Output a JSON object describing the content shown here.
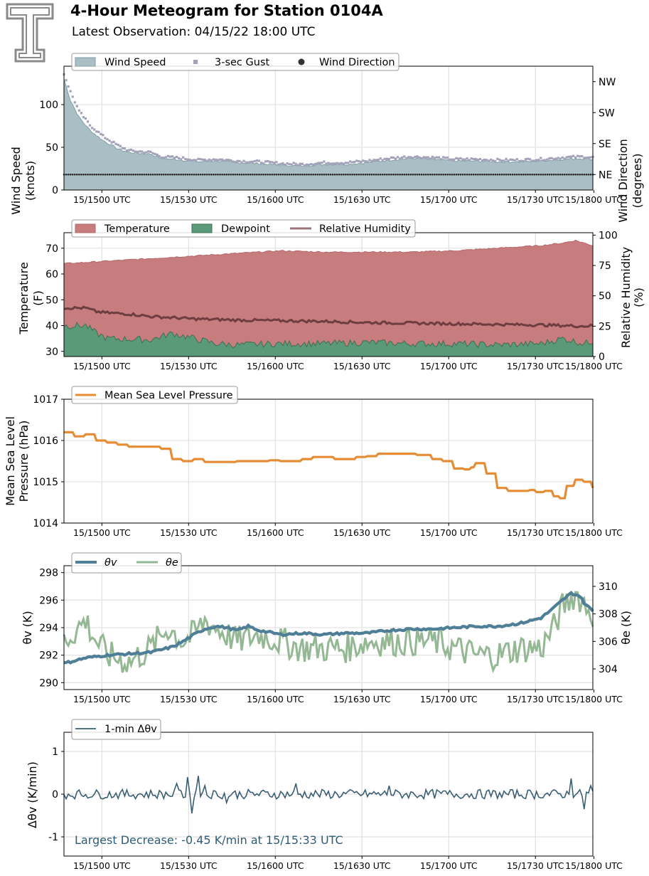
{
  "header": {
    "title": "4-Hour Meteogram for Station 0104A",
    "subtitle": "Latest Observation: 04/15/22 18:00 UTC",
    "logo_icon": "texas-tech-double-t-logo"
  },
  "x_ticks": [
    "15/1500 UTC",
    "15/1530 UTC",
    "15/1600 UTC",
    "15/1630 UTC",
    "15/1700 UTC",
    "15/1730 UTC",
    "15/1800 UTC"
  ],
  "chart_data": [
    {
      "type": "area",
      "id": "wind",
      "x_range": [
        "15/1445 UTC",
        "15/1800 UTC"
      ],
      "ylabel": [
        "Wind Speed",
        "(knots)"
      ],
      "ylim": [
        0,
        145
      ],
      "yticks": [
        0,
        50,
        100
      ],
      "y2label": [
        "Wind Direction",
        "(degrees)"
      ],
      "y2ticks": [
        "NE",
        "SE",
        "SW",
        "NW"
      ],
      "y2ticks_deg": [
        45,
        135,
        225,
        315
      ],
      "y2lim": [
        0,
        360
      ],
      "grid": true,
      "legend": [
        "Wind Speed",
        "3-sec Gust",
        "Wind Direction"
      ],
      "legend_position": "top-left",
      "colors": {
        "speed": "#a9bfc5",
        "speed_line": "#7f9ea4",
        "gust": "#a2a2ba",
        "direction": "#222222"
      },
      "series": [
        {
          "name": "Wind Speed",
          "keyframes": [
            [
              0,
              130
            ],
            [
              3,
              105
            ],
            [
              7,
              85
            ],
            [
              12,
              70
            ],
            [
              18,
              58
            ],
            [
              25,
              48
            ],
            [
              30,
              44
            ],
            [
              40,
              42
            ],
            [
              45,
              37
            ],
            [
              55,
              35
            ],
            [
              62,
              33
            ],
            [
              70,
              34
            ],
            [
              80,
              32
            ],
            [
              90,
              31
            ],
            [
              100,
              29
            ],
            [
              110,
              28
            ],
            [
              120,
              30
            ],
            [
              130,
              30
            ],
            [
              140,
              32
            ],
            [
              150,
              35
            ],
            [
              160,
              37
            ],
            [
              170,
              36
            ],
            [
              180,
              34
            ],
            [
              190,
              34
            ],
            [
              200,
              33
            ],
            [
              210,
              33
            ],
            [
              220,
              34
            ],
            [
              230,
              36
            ],
            [
              240,
              37
            ],
            [
              244,
              36
            ]
          ]
        },
        {
          "name": "3-sec Gust",
          "keyframes": [
            [
              0,
              136
            ],
            [
              3,
              115
            ],
            [
              7,
              92
            ],
            [
              12,
              76
            ],
            [
              18,
              63
            ],
            [
              25,
              52
            ],
            [
              30,
              46
            ],
            [
              40,
              44
            ],
            [
              45,
              39
            ],
            [
              55,
              37
            ],
            [
              62,
              35
            ],
            [
              70,
              36
            ],
            [
              80,
              34
            ],
            [
              90,
              33
            ],
            [
              100,
              31
            ],
            [
              110,
              30
            ],
            [
              120,
              32
            ],
            [
              130,
              32
            ],
            [
              140,
              34
            ],
            [
              150,
              37
            ],
            [
              160,
              39
            ],
            [
              170,
              38
            ],
            [
              180,
              36
            ],
            [
              190,
              36
            ],
            [
              200,
              35
            ],
            [
              210,
              35
            ],
            [
              220,
              36
            ],
            [
              230,
              38
            ],
            [
              240,
              39
            ],
            [
              244,
              38
            ]
          ]
        },
        {
          "name": "Wind Direction",
          "value_deg": 45
        }
      ]
    },
    {
      "type": "area",
      "id": "thermo",
      "ylabel": [
        "Temperature",
        "(F)"
      ],
      "ylim": [
        28,
        76
      ],
      "yticks": [
        30,
        40,
        50,
        60,
        70
      ],
      "y2label": [
        "Relative Humidity",
        "(%)"
      ],
      "y2lim": [
        0,
        102
      ],
      "y2ticks": [
        0,
        25,
        50,
        75,
        100
      ],
      "grid": true,
      "legend": [
        "Temperature",
        "Dewpoint",
        "Relative Humidity"
      ],
      "legend_position": "top-left",
      "colors": {
        "temperature": "#c77c7e",
        "temperature_line": "#b5676a",
        "dewpoint": "#5a9a78",
        "dewpoint_line": "#3d6e52",
        "rh": "#6e3d40"
      },
      "series": [
        {
          "name": "Temperature",
          "keyframes": [
            [
              0,
              64
            ],
            [
              20,
              65
            ],
            [
              40,
              66
            ],
            [
              60,
              67
            ],
            [
              80,
              68
            ],
            [
              100,
              69
            ],
            [
              120,
              68.5
            ],
            [
              140,
              68.5
            ],
            [
              160,
              68.5
            ],
            [
              180,
              69
            ],
            [
              200,
              70
            ],
            [
              220,
              71
            ],
            [
              230,
              72
            ],
            [
              236,
              73
            ],
            [
              244,
              71
            ]
          ]
        },
        {
          "name": "Dewpoint",
          "keyframes": [
            [
              0,
              40
            ],
            [
              10,
              40
            ],
            [
              15,
              37
            ],
            [
              20,
              35
            ],
            [
              40,
              34.5
            ],
            [
              50,
              37
            ],
            [
              60,
              35
            ],
            [
              70,
              33
            ],
            [
              80,
              32.5
            ],
            [
              100,
              33
            ],
            [
              120,
              33
            ],
            [
              140,
              33.5
            ],
            [
              160,
              33
            ],
            [
              180,
              33
            ],
            [
              200,
              32.5
            ],
            [
              220,
              33
            ],
            [
              230,
              35
            ],
            [
              240,
              33
            ],
            [
              244,
              34
            ]
          ]
        },
        {
          "name": "Relative Humidity",
          "keyframes": [
            [
              0,
              40
            ],
            [
              10,
              40
            ],
            [
              15,
              37
            ],
            [
              20,
              36
            ],
            [
              30,
              35
            ],
            [
              40,
              33
            ],
            [
              50,
              32
            ],
            [
              60,
              31
            ],
            [
              80,
              30
            ],
            [
              100,
              29.5
            ],
            [
              120,
              29
            ],
            [
              140,
              28
            ],
            [
              160,
              27.5
            ],
            [
              180,
              27
            ],
            [
              200,
              26.5
            ],
            [
              220,
              26
            ],
            [
              240,
              25
            ],
            [
              244,
              25.5
            ]
          ]
        }
      ]
    },
    {
      "type": "line",
      "id": "pressure",
      "ylabel": [
        "Mean Sea Level",
        "Pressure (hPa)"
      ],
      "ylim": [
        1014,
        1017
      ],
      "yticks": [
        1014,
        1015,
        1016,
        1017
      ],
      "grid": true,
      "legend": [
        "Mean Sea Level Pressure"
      ],
      "legend_position": "top-left",
      "colors": {
        "pressure": "#e68c34"
      },
      "series": [
        {
          "name": "Mean Sea Level Pressure",
          "keyframes": [
            [
              0,
              1016.2
            ],
            [
              5,
              1016.1
            ],
            [
              10,
              1016.15
            ],
            [
              15,
              1016.0
            ],
            [
              20,
              1015.95
            ],
            [
              25,
              1015.9
            ],
            [
              30,
              1015.85
            ],
            [
              40,
              1015.85
            ],
            [
              45,
              1015.8
            ],
            [
              50,
              1015.55
            ],
            [
              55,
              1015.5
            ],
            [
              60,
              1015.55
            ],
            [
              65,
              1015.48
            ],
            [
              75,
              1015.48
            ],
            [
              80,
              1015.5
            ],
            [
              90,
              1015.5
            ],
            [
              95,
              1015.52
            ],
            [
              100,
              1015.5
            ],
            [
              105,
              1015.5
            ],
            [
              110,
              1015.55
            ],
            [
              115,
              1015.6
            ],
            [
              125,
              1015.55
            ],
            [
              130,
              1015.55
            ],
            [
              135,
              1015.6
            ],
            [
              140,
              1015.62
            ],
            [
              145,
              1015.68
            ],
            [
              155,
              1015.68
            ],
            [
              160,
              1015.68
            ],
            [
              163,
              1015.65
            ],
            [
              170,
              1015.55
            ],
            [
              175,
              1015.5
            ],
            [
              180,
              1015.32
            ],
            [
              185,
              1015.3
            ],
            [
              188,
              1015.35
            ],
            [
              190,
              1015.45
            ],
            [
              195,
              1015.2
            ],
            [
              200,
              1014.85
            ],
            [
              205,
              1014.78
            ],
            [
              210,
              1014.78
            ],
            [
              215,
              1014.8
            ],
            [
              218,
              1014.75
            ],
            [
              222,
              1014.78
            ],
            [
              226,
              1014.65
            ],
            [
              229,
              1014.6
            ],
            [
              232,
              1014.9
            ],
            [
              236,
              1015.05
            ],
            [
              240,
              1015.0
            ],
            [
              244,
              1014.85
            ]
          ]
        }
      ]
    },
    {
      "type": "line",
      "id": "theta",
      "ylabel": "θv (K)",
      "ylim": [
        289.5,
        298.5
      ],
      "yticks": [
        290,
        292,
        294,
        296,
        298
      ],
      "y2label": "θe (K)",
      "y2lim": [
        302.5,
        311.5
      ],
      "y2ticks": [
        304,
        306,
        308,
        310
      ],
      "grid": true,
      "legend": [
        "θv",
        "θe"
      ],
      "legend_position": "top-left",
      "colors": {
        "theta_v": "#4f7e97",
        "theta_e": "#93b893"
      },
      "series": [
        {
          "name": "θv",
          "keyframes": [
            [
              0,
              291.4
            ],
            [
              10,
              291.8
            ],
            [
              20,
              292.0
            ],
            [
              30,
              292.1
            ],
            [
              40,
              292.2
            ],
            [
              50,
              292.6
            ],
            [
              55,
              293.0
            ],
            [
              60,
              293.5
            ],
            [
              65,
              293.9
            ],
            [
              70,
              294.1
            ],
            [
              75,
              294.0
            ],
            [
              80,
              293.8
            ],
            [
              85,
              294.1
            ],
            [
              90,
              293.8
            ],
            [
              100,
              293.5
            ],
            [
              110,
              293.6
            ],
            [
              120,
              293.5
            ],
            [
              130,
              293.6
            ],
            [
              140,
              293.6
            ],
            [
              150,
              293.8
            ],
            [
              160,
              293.9
            ],
            [
              170,
              293.9
            ],
            [
              180,
              294.0
            ],
            [
              190,
              294.1
            ],
            [
              200,
              294.1
            ],
            [
              210,
              294.3
            ],
            [
              215,
              294.5
            ],
            [
              220,
              294.7
            ],
            [
              225,
              295.3
            ],
            [
              230,
              296.0
            ],
            [
              234,
              296.5
            ],
            [
              238,
              296.3
            ],
            [
              240,
              295.8
            ],
            [
              244,
              295.2
            ]
          ]
        },
        {
          "name": "θe",
          "keyframes": [
            [
              0,
              306
            ],
            [
              10,
              307.5
            ],
            [
              15,
              306
            ],
            [
              20,
              305
            ],
            [
              30,
              304.5
            ],
            [
              40,
              305.5
            ],
            [
              48,
              307
            ],
            [
              55,
              306
            ],
            [
              60,
              306.5
            ],
            [
              65,
              307.5
            ],
            [
              70,
              307
            ],
            [
              75,
              306.5
            ],
            [
              80,
              306
            ],
            [
              90,
              306.5
            ],
            [
              100,
              306
            ],
            [
              110,
              305.5
            ],
            [
              120,
              305.5
            ],
            [
              130,
              305.5
            ],
            [
              140,
              306
            ],
            [
              150,
              306
            ],
            [
              160,
              306
            ],
            [
              170,
              306
            ],
            [
              180,
              305.5
            ],
            [
              190,
              305
            ],
            [
              200,
              305
            ],
            [
              210,
              305.5
            ],
            [
              220,
              305.5
            ],
            [
              226,
              307
            ],
            [
              230,
              308.5
            ],
            [
              236,
              309.5
            ],
            [
              244,
              308
            ]
          ]
        }
      ]
    },
    {
      "type": "line",
      "id": "delta",
      "ylabel": "Δθv (K/min)",
      "ylim": [
        -1.45,
        1.45
      ],
      "yticks": [
        -1,
        0,
        1
      ],
      "grid": true,
      "legend": [
        "1-min Δθv"
      ],
      "legend_position": "top-left",
      "annotation": "Largest Decrease: -0.45 K/min at 15/15:33 UTC",
      "colors": {
        "delta": "#3b5f72",
        "annotation": "#2f5c75"
      },
      "series": [
        {
          "name": "1-min Δθv",
          "range": [
            -0.45,
            0.43
          ],
          "centered_on": 0,
          "largest_decrease": -0.45
        }
      ]
    }
  ]
}
